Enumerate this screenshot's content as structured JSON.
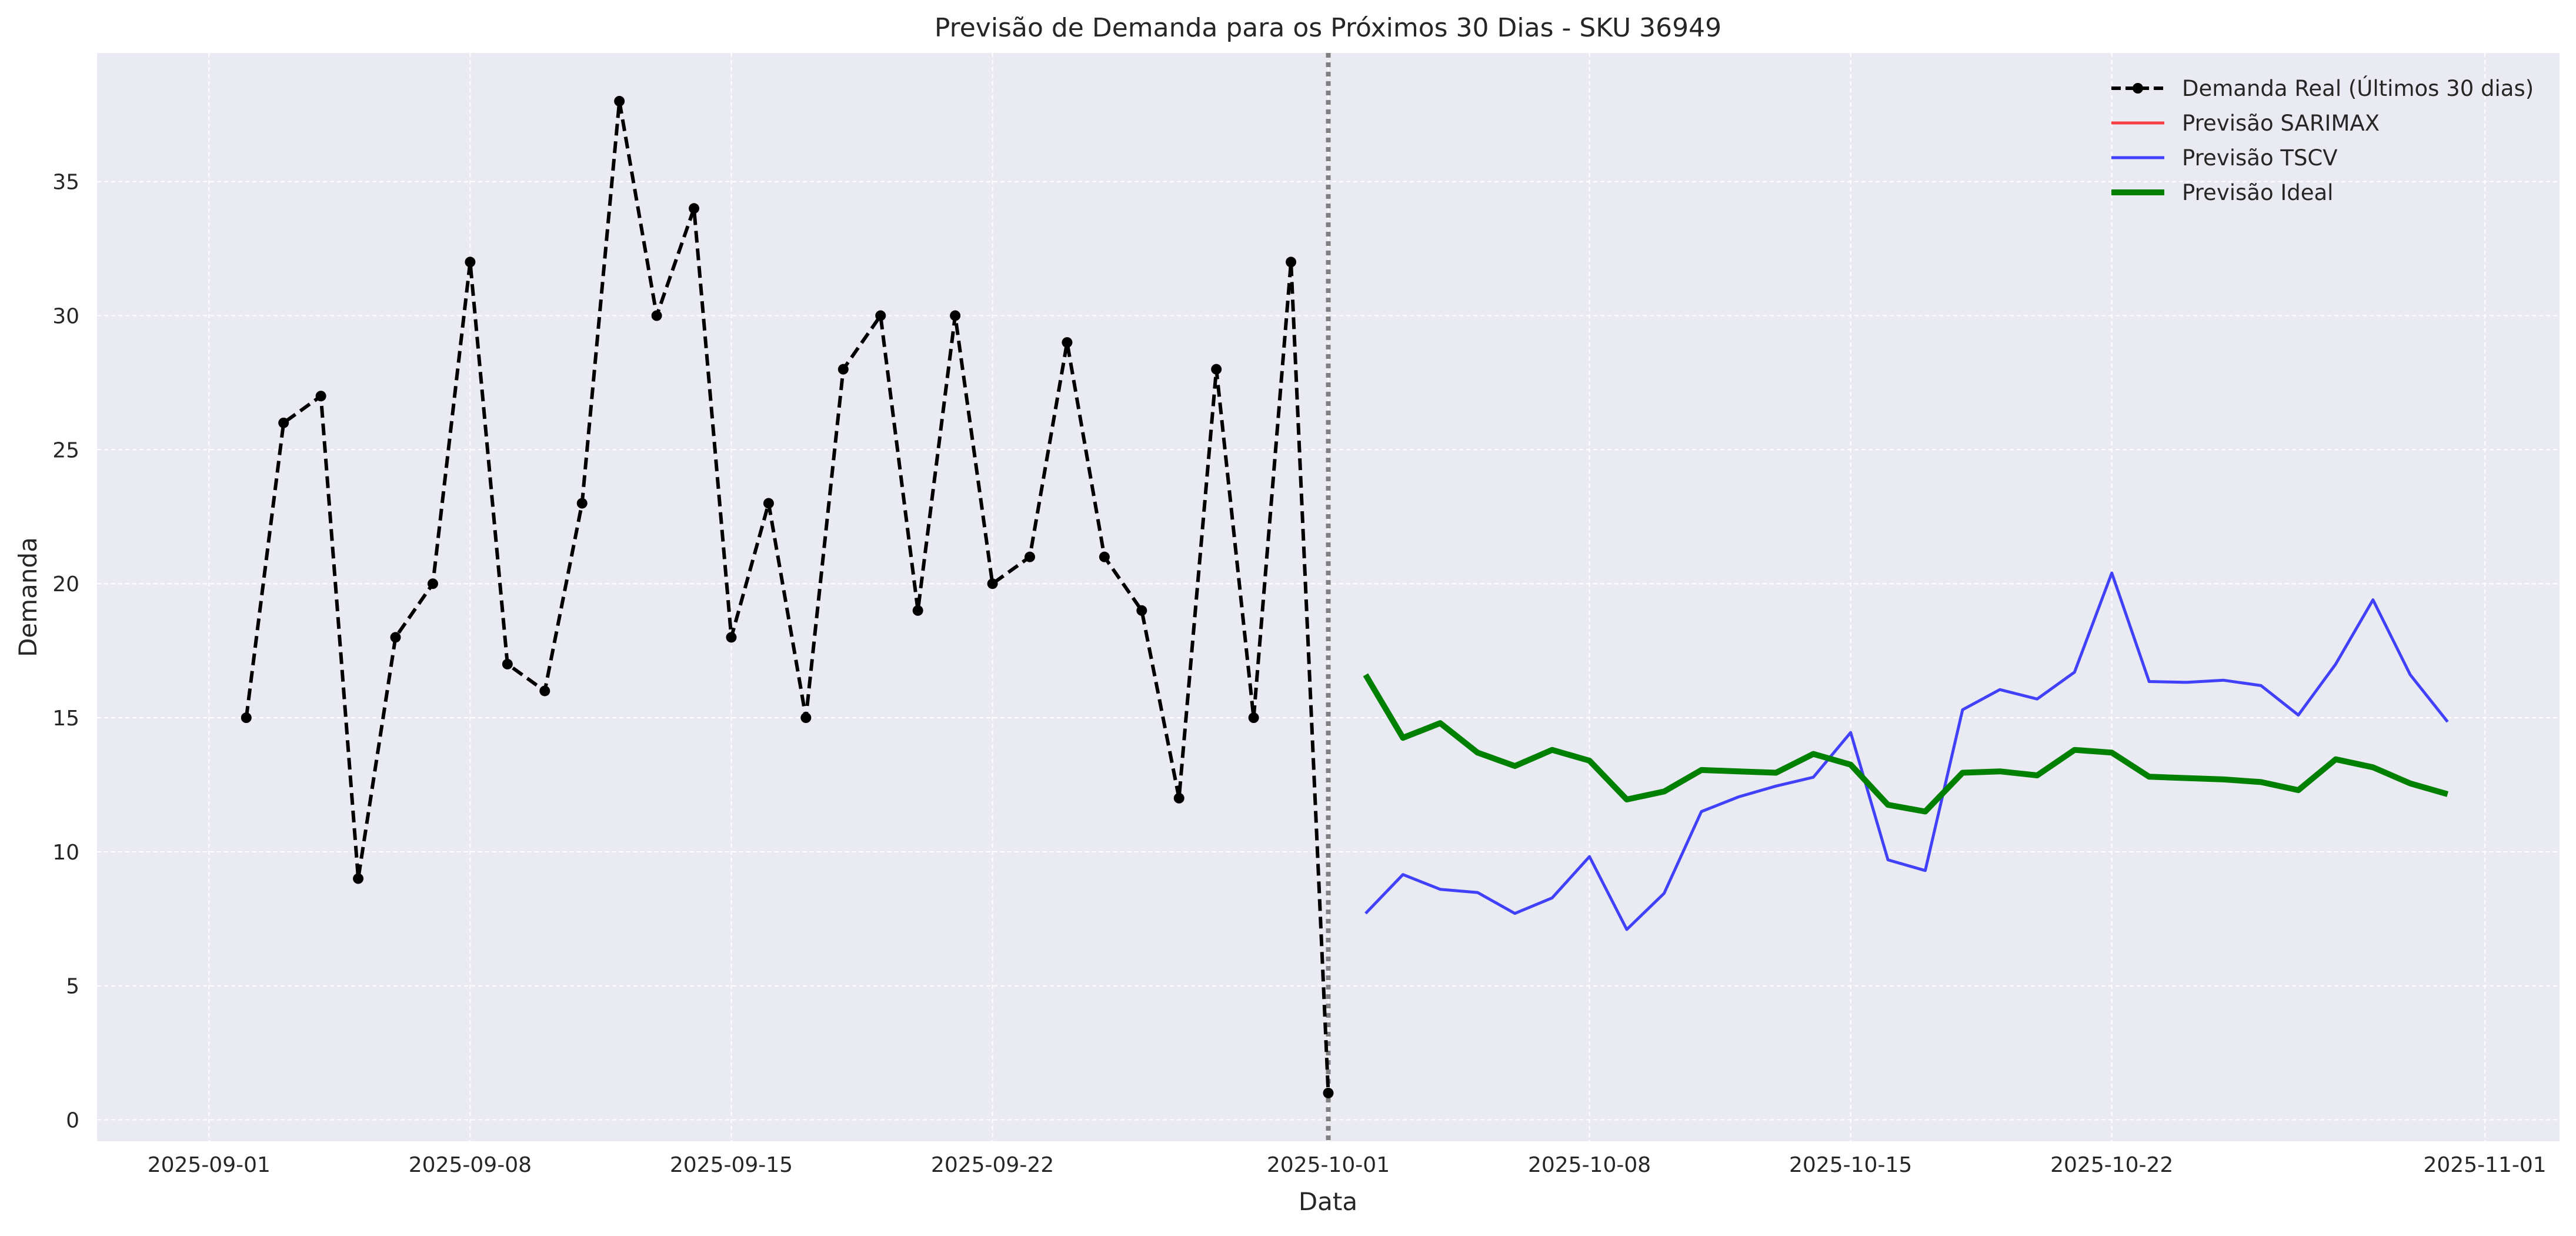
{
  "chart_data": {
    "type": "line",
    "title": "Previsão de Demanda para os Próximos 30 Dias - SKU 36949",
    "xlabel": "Data",
    "ylabel": "Demanda",
    "xlim": [
      "2025-08-29",
      "2025-11-03"
    ],
    "ylim": [
      -0.8,
      39.8
    ],
    "x_ticks": [
      "2025-09-01",
      "2025-09-08",
      "2025-09-15",
      "2025-09-22",
      "2025-10-01",
      "2025-10-08",
      "2025-10-15",
      "2025-10-22",
      "2025-11-01"
    ],
    "y_ticks": [
      0,
      5,
      10,
      15,
      20,
      25,
      30,
      35
    ],
    "grid": true,
    "legend_position": "top-right",
    "vline": {
      "x": "2025-10-01",
      "style": "dotted",
      "color": "#808080"
    },
    "colors": {
      "actual": "#000000",
      "sarimax": "#ff0000",
      "tscv": "#0000ff",
      "ideal": "#008000",
      "plot_background": "#eaeaf2",
      "grid": "#ffffff"
    },
    "series": [
      {
        "name": "Demanda Real (Últimos 30 dias)",
        "style": "dashed-markers",
        "x": [
          "2025-09-02",
          "2025-09-03",
          "2025-09-04",
          "2025-09-05",
          "2025-09-06",
          "2025-09-07",
          "2025-09-08",
          "2025-09-09",
          "2025-09-10",
          "2025-09-11",
          "2025-09-12",
          "2025-09-13",
          "2025-09-14",
          "2025-09-15",
          "2025-09-16",
          "2025-09-17",
          "2025-09-18",
          "2025-09-19",
          "2025-09-20",
          "2025-09-21",
          "2025-09-22",
          "2025-09-23",
          "2025-09-24",
          "2025-09-25",
          "2025-09-26",
          "2025-09-27",
          "2025-09-28",
          "2025-09-29",
          "2025-09-30",
          "2025-10-01"
        ],
        "values": [
          15,
          26,
          27,
          9,
          18,
          20,
          32,
          17,
          16,
          23,
          38,
          30,
          34,
          18,
          23,
          15,
          28,
          30,
          19,
          30,
          20,
          21,
          29,
          21,
          19,
          12,
          28,
          15,
          32,
          1
        ]
      },
      {
        "name": "Previsão SARIMAX",
        "style": "solid-thin",
        "x": [],
        "values": []
      },
      {
        "name": "Previsão TSCV",
        "style": "solid-thin",
        "x": [
          "2025-10-02",
          "2025-10-03",
          "2025-10-04",
          "2025-10-05",
          "2025-10-06",
          "2025-10-07",
          "2025-10-08",
          "2025-10-09",
          "2025-10-10",
          "2025-10-11",
          "2025-10-12",
          "2025-10-13",
          "2025-10-14",
          "2025-10-15",
          "2025-10-16",
          "2025-10-17",
          "2025-10-18",
          "2025-10-19",
          "2025-10-20",
          "2025-10-21",
          "2025-10-22",
          "2025-10-23",
          "2025-10-24",
          "2025-10-25",
          "2025-10-26",
          "2025-10-27",
          "2025-10-28",
          "2025-10-29",
          "2025-10-30",
          "2025-10-31"
        ],
        "values": [
          7.7,
          9.15,
          8.6,
          8.48,
          7.7,
          8.28,
          9.82,
          7.1,
          8.45,
          11.5,
          12.05,
          12.45,
          12.78,
          14.45,
          9.7,
          9.3,
          15.3,
          16.05,
          15.7,
          16.7,
          20.4,
          16.35,
          16.32,
          16.4,
          16.2,
          15.1,
          17.0,
          19.4,
          16.6,
          14.85
        ]
      },
      {
        "name": "Previsão Ideal",
        "style": "solid-thick",
        "x": [
          "2025-10-02",
          "2025-10-03",
          "2025-10-04",
          "2025-10-05",
          "2025-10-06",
          "2025-10-07",
          "2025-10-08",
          "2025-10-09",
          "2025-10-10",
          "2025-10-11",
          "2025-10-12",
          "2025-10-13",
          "2025-10-14",
          "2025-10-15",
          "2025-10-16",
          "2025-10-17",
          "2025-10-18",
          "2025-10-19",
          "2025-10-20",
          "2025-10-21",
          "2025-10-22",
          "2025-10-23",
          "2025-10-24",
          "2025-10-25",
          "2025-10-26",
          "2025-10-27",
          "2025-10-28",
          "2025-10-29",
          "2025-10-30",
          "2025-10-31"
        ],
        "values": [
          16.6,
          14.25,
          14.8,
          13.7,
          13.2,
          13.8,
          13.4,
          11.95,
          12.25,
          13.05,
          13.0,
          12.95,
          13.65,
          13.25,
          11.75,
          11.5,
          12.95,
          13.0,
          12.85,
          13.8,
          13.7,
          12.8,
          12.75,
          12.7,
          12.6,
          12.3,
          13.45,
          13.15,
          12.55,
          12.15
        ]
      }
    ]
  }
}
